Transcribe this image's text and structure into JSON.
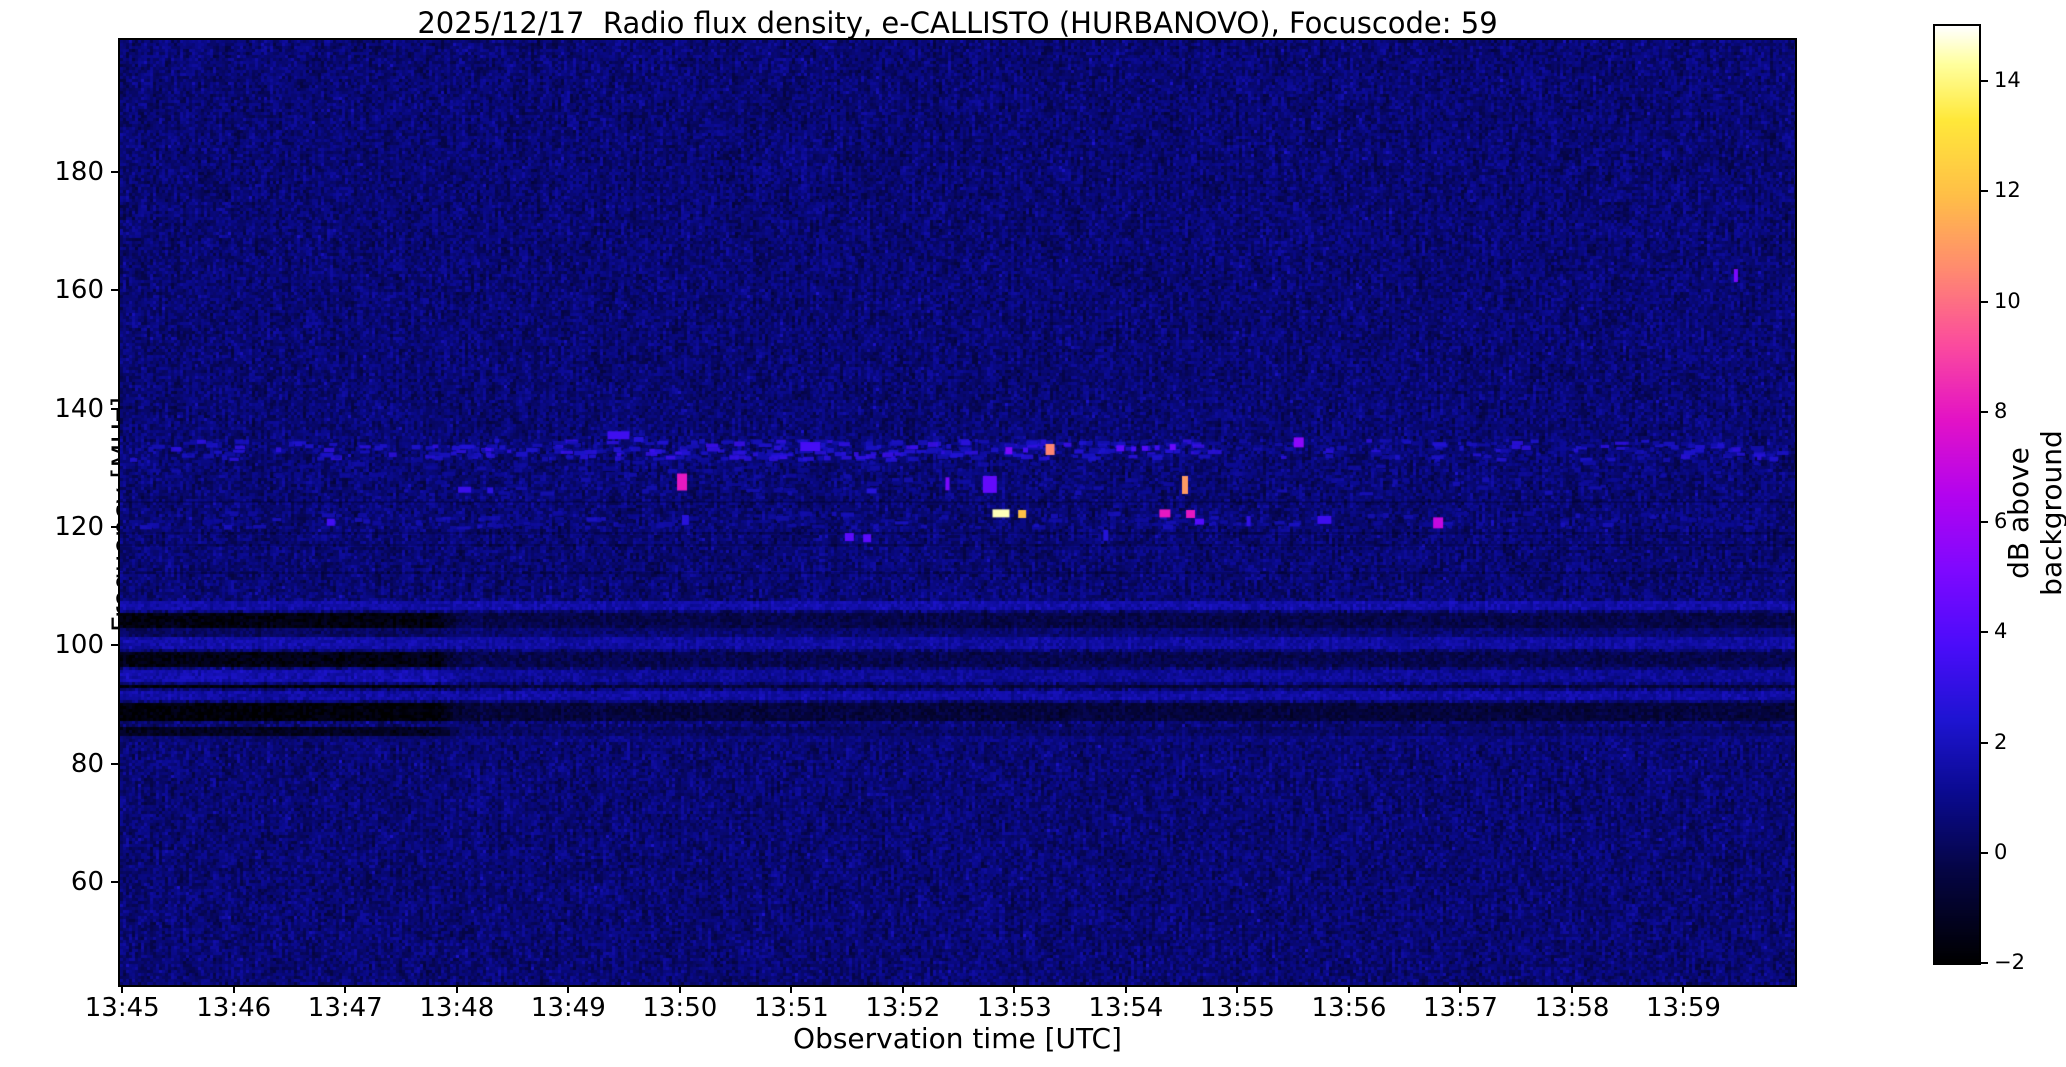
{
  "figure": {
    "title": "2025/12/17  Radio flux density, e-CALLISTO (HURBANOVO), Focuscode: 59",
    "xlabel": "Observation time [UTC]",
    "ylabel": "Frequency [MHz]",
    "colorbar_label": "dB above background"
  },
  "chart_data": {
    "type": "heatmap",
    "title": "2025/12/17  Radio flux density, e-CALLISTO (HURBANOVO), Focuscode: 59",
    "xlabel": "Observation time [UTC]",
    "ylabel": "Frequency [MHz]",
    "x_start_utc": "13:45",
    "x_end_utc": "14:00",
    "x_range_min": [
      -0.02,
      15.0
    ],
    "x_ticks": [
      {
        "minute": 0,
        "label": "13:45"
      },
      {
        "minute": 1,
        "label": "13:46"
      },
      {
        "minute": 2,
        "label": "13:47"
      },
      {
        "minute": 3,
        "label": "13:48"
      },
      {
        "minute": 4,
        "label": "13:49"
      },
      {
        "minute": 5,
        "label": "13:50"
      },
      {
        "minute": 6,
        "label": "13:51"
      },
      {
        "minute": 7,
        "label": "13:52"
      },
      {
        "minute": 8,
        "label": "13:53"
      },
      {
        "minute": 9,
        "label": "13:54"
      },
      {
        "minute": 10,
        "label": "13:55"
      },
      {
        "minute": 11,
        "label": "13:56"
      },
      {
        "minute": 12,
        "label": "13:57"
      },
      {
        "minute": 13,
        "label": "13:58"
      },
      {
        "minute": 14,
        "label": "13:59"
      }
    ],
    "y_range_mhz": [
      42.6,
      202.3
    ],
    "y_ticks": [
      {
        "value": 180,
        "label": "180"
      },
      {
        "value": 160,
        "label": "160"
      },
      {
        "value": 140,
        "label": "140"
      },
      {
        "value": 120,
        "label": "120"
      },
      {
        "value": 100,
        "label": "100"
      },
      {
        "value": 80,
        "label": "80"
      },
      {
        "value": 60,
        "label": "60"
      }
    ],
    "colorbar": {
      "label": "dB above background",
      "range_db": [
        -2,
        15
      ],
      "ticks": [
        {
          "value": 14,
          "label": "14"
        },
        {
          "value": 12,
          "label": "12"
        },
        {
          "value": 10,
          "label": "10"
        },
        {
          "value": 8,
          "label": "8"
        },
        {
          "value": 6,
          "label": "6"
        },
        {
          "value": 4,
          "label": "4"
        },
        {
          "value": 2,
          "label": "2"
        },
        {
          "value": 0,
          "label": "0"
        },
        {
          "value": -2,
          "label": "−2"
        }
      ],
      "colormap": "gnuplot2-like (black-blue-violet-magenta-orange-yellow-white)",
      "stops": [
        [
          0.0,
          "#000000"
        ],
        [
          0.1,
          "#050545"
        ],
        [
          0.18,
          "#0a0a8e"
        ],
        [
          0.26,
          "#1e14d2"
        ],
        [
          0.34,
          "#4b0cfa"
        ],
        [
          0.42,
          "#7f08ff"
        ],
        [
          0.5,
          "#b303ef"
        ],
        [
          0.58,
          "#e312c6"
        ],
        [
          0.66,
          "#fb4b9e"
        ],
        [
          0.74,
          "#ff8a70"
        ],
        [
          0.82,
          "#ffbf47"
        ],
        [
          0.9,
          "#ffe83a"
        ],
        [
          0.96,
          "#ffff9e"
        ],
        [
          1.0,
          "#ffffff"
        ]
      ]
    },
    "background_noise": {
      "base_db": 0.55,
      "jitter_db": 0.7,
      "streak_db": 0.8
    },
    "fm_transition_min": 2.8,
    "fm_stripes": [
      {
        "f1": 106.3,
        "f2": 108.0,
        "early": 1.5,
        "late": 1.6
      },
      {
        "f1": 103.0,
        "f2": 105.8,
        "early": -1.6,
        "late": -0.2
      },
      {
        "f1": 101.5,
        "f2": 103.0,
        "early": 0.2,
        "late": 0.5
      },
      {
        "f1": 99.8,
        "f2": 101.5,
        "early": 1.6,
        "late": 1.4
      },
      {
        "f1": 96.5,
        "f2": 99.3,
        "early": -1.5,
        "late": -0.1
      },
      {
        "f1": 94.3,
        "f2": 96.3,
        "early": 1.7,
        "late": 1.2
      },
      {
        "f1": 92.8,
        "f2": 93.8,
        "early": -1.7,
        "late": -0.4
      },
      {
        "f1": 90.8,
        "f2": 92.5,
        "early": 1.5,
        "late": 1.5
      },
      {
        "f1": 87.3,
        "f2": 90.3,
        "early": -1.8,
        "late": -0.5
      },
      {
        "f1": 84.8,
        "f2": 86.5,
        "early": -1.2,
        "late": 0.3
      },
      {
        "f1": 84.0,
        "f2": 84.8,
        "early": 0.5,
        "late": 0.8
      }
    ],
    "speckle_rows": [
      {
        "f1": 131.3,
        "f2": 134.6,
        "count": 260,
        "vmin": 1.2,
        "vmax": 3.0,
        "t1": 0.1,
        "t2": 14.9
      },
      {
        "f1": 131.5,
        "f2": 134.4,
        "count": 140,
        "vmin": 1.5,
        "vmax": 3.4,
        "t1": 2.7,
        "t2": 9.8
      },
      {
        "f1": 119.8,
        "f2": 122.4,
        "count": 120,
        "vmin": 1.0,
        "vmax": 2.3,
        "t1": 0.1,
        "t2": 14.9
      },
      {
        "f1": 125.6,
        "f2": 128.0,
        "count": 60,
        "vmin": 1.0,
        "vmax": 2.0,
        "t1": 2.5,
        "t2": 13.5
      },
      {
        "f1": 128.5,
        "f2": 131.0,
        "count": 70,
        "vmin": 0.9,
        "vmax": 1.8,
        "t1": 0.1,
        "t2": 14.9
      }
    ],
    "dark_rows_mhz": [
      124.2,
      119.0,
      117.0,
      112.2
    ],
    "events": [
      {
        "t": 1.87,
        "f": 120.8,
        "w": 8,
        "h": 7,
        "db": 3.5
      },
      {
        "t": 3.07,
        "f": 126.3,
        "w": 13,
        "h": 6,
        "db": 3.2
      },
      {
        "t": 3.3,
        "f": 126.2,
        "w": 6,
        "h": 6,
        "db": 2.8
      },
      {
        "t": 4.45,
        "f": 135.5,
        "w": 22,
        "h": 8,
        "db": 3.4
      },
      {
        "t": 4.63,
        "f": 134.8,
        "w": 10,
        "h": 5,
        "db": 2.6
      },
      {
        "t": 5.02,
        "f": 127.6,
        "w": 10,
        "h": 17,
        "db": 8.0
      },
      {
        "t": 5.05,
        "f": 121.2,
        "w": 7,
        "h": 10,
        "db": 2.7
      },
      {
        "t": 6.17,
        "f": 133.6,
        "w": 20,
        "h": 9,
        "db": 3.6
      },
      {
        "t": 6.52,
        "f": 118.3,
        "w": 9,
        "h": 8,
        "db": 4.2
      },
      {
        "t": 6.68,
        "f": 118.1,
        "w": 8,
        "h": 8,
        "db": 4.2
      },
      {
        "t": 6.72,
        "f": 126.1,
        "w": 10,
        "h": 5,
        "db": 2.6
      },
      {
        "t": 7.4,
        "f": 127.3,
        "w": 4,
        "h": 13,
        "db": 5.0
      },
      {
        "t": 7.78,
        "f": 127.2,
        "w": 14,
        "h": 17,
        "db": 4.4
      },
      {
        "t": 7.88,
        "f": 122.3,
        "w": 17,
        "h": 8,
        "db": 14.5
      },
      {
        "t": 8.07,
        "f": 122.2,
        "w": 8,
        "h": 8,
        "db": 12.0
      },
      {
        "t": 7.95,
        "f": 132.9,
        "w": 7,
        "h": 7,
        "db": 5.0
      },
      {
        "t": 8.1,
        "f": 133.0,
        "w": 5,
        "h": 5,
        "db": 3.5
      },
      {
        "t": 8.32,
        "f": 133.1,
        "w": 9,
        "h": 11,
        "db": 10.5
      },
      {
        "t": 8.82,
        "f": 118.6,
        "w": 5,
        "h": 11,
        "db": 2.6
      },
      {
        "t": 8.95,
        "f": 133.3,
        "w": 8,
        "h": 6,
        "db": 4.2
      },
      {
        "t": 9.07,
        "f": 133.2,
        "w": 5,
        "h": 5,
        "db": 3.6
      },
      {
        "t": 9.17,
        "f": 133.3,
        "w": 6,
        "h": 5,
        "db": 4.0
      },
      {
        "t": 9.28,
        "f": 133.4,
        "w": 5,
        "h": 5,
        "db": 3.4
      },
      {
        "t": 9.42,
        "f": 133.5,
        "w": 6,
        "h": 6,
        "db": 4.6
      },
      {
        "t": 9.35,
        "f": 122.3,
        "w": 11,
        "h": 8,
        "db": 8.0
      },
      {
        "t": 9.53,
        "f": 127.1,
        "w": 6,
        "h": 18,
        "db": 11.0
      },
      {
        "t": 9.58,
        "f": 122.2,
        "w": 9,
        "h": 8,
        "db": 8.0
      },
      {
        "t": 9.66,
        "f": 120.9,
        "w": 9,
        "h": 6,
        "db": 4.0
      },
      {
        "t": 10.1,
        "f": 121.0,
        "w": 4,
        "h": 10,
        "db": 3.0
      },
      {
        "t": 10.55,
        "f": 134.3,
        "w": 10,
        "h": 10,
        "db": 5.5
      },
      {
        "t": 10.78,
        "f": 121.2,
        "w": 14,
        "h": 8,
        "db": 3.4
      },
      {
        "t": 11.8,
        "f": 120.7,
        "w": 10,
        "h": 11,
        "db": 7.0
      },
      {
        "t": 14.47,
        "f": 162.5,
        "w": 4,
        "h": 13,
        "db": 5.0
      }
    ]
  }
}
